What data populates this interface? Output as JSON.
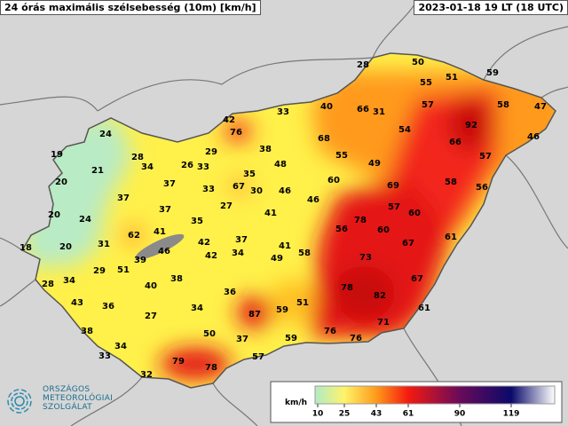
{
  "header": {
    "title": "24 órás maximális szélsebesség (10m) [km/h]",
    "timestamp": "2023-01-18 19 LT (18 UTC)"
  },
  "stations": [
    28,
    50,
    59,
    51,
    55,
    40,
    66,
    31,
    57,
    58,
    47,
    33,
    42,
    76,
    92,
    54,
    46,
    24,
    68,
    66,
    29,
    38,
    19,
    28,
    34,
    26,
    33,
    48,
    55,
    57,
    21,
    35,
    49,
    20,
    37,
    67,
    30,
    33,
    46,
    60,
    69,
    58,
    56,
    37,
    27,
    46,
    57,
    37,
    41,
    60,
    20,
    24,
    35,
    78,
    62,
    41,
    56,
    60,
    61,
    18,
    20,
    31,
    42,
    37,
    41,
    67,
    46,
    34,
    42,
    58,
    49,
    39,
    73,
    29,
    51,
    28,
    34,
    38,
    40,
    78,
    82,
    67,
    36,
    43,
    36,
    51,
    34,
    59,
    61,
    87,
    27,
    71,
    38,
    76,
    76,
    59,
    50,
    37,
    34,
    57,
    33,
    79,
    78,
    32
  ],
  "legend": {
    "unit": "km/h",
    "ticks": [
      10,
      25,
      43,
      61,
      90,
      119
    ],
    "colors": [
      "#b6ecc0",
      "#fff36a",
      "#ff9a1a",
      "#f41a10",
      "#6a0a5a",
      "#0a0a6a"
    ]
  },
  "logo": {
    "lines": [
      "ORSZÁGOS",
      "METEOROLÓGIAI",
      "SZOLGÁLAT"
    ]
  }
}
